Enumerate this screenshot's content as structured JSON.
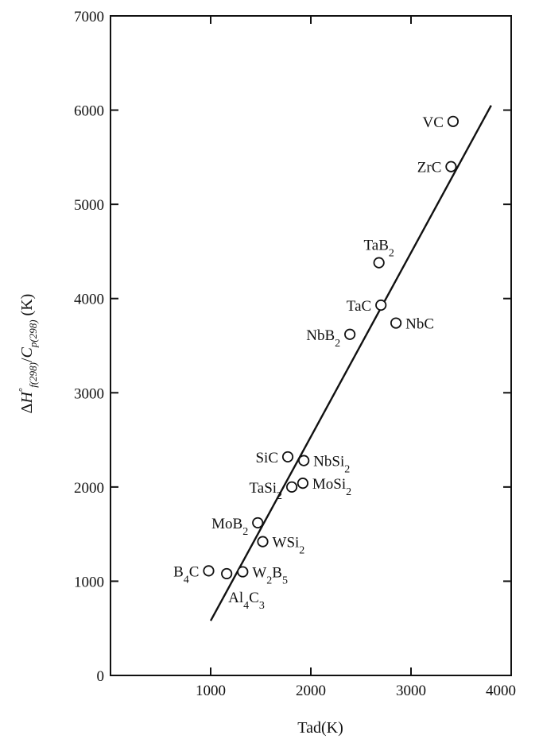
{
  "chart_data": {
    "type": "scatter",
    "xlabel": "Tad(K)",
    "ylabel": "ΔH°f(298)/Cp(298) (K)",
    "ylabel_parts": {
      "prefix": "Δ",
      "h": "H",
      "deg": "°",
      "f_sub": "f(298)",
      "slash": "/",
      "c": "C",
      "p_sub": "p(298)",
      "unit": " (K)"
    },
    "xlim": [
      0,
      4000
    ],
    "ylim": [
      0,
      7000
    ],
    "x_ticks": [
      1000,
      2000,
      3000,
      4000
    ],
    "x_tick_labels": [
      "1000",
      "2000",
      "3000",
      "4000"
    ],
    "y_ticks": [
      0,
      1000,
      2000,
      3000,
      4000,
      5000,
      6000,
      7000
    ],
    "y_tick_labels": [
      "0",
      "1000",
      "2000",
      "3000",
      "4000",
      "5000",
      "6000",
      "7000"
    ],
    "grid": false,
    "points": [
      {
        "label": "VC",
        "parts": [
          {
            "t": "VC"
          }
        ],
        "x": 3420,
        "y": 5880,
        "anchor": "end",
        "side": "left"
      },
      {
        "label": "ZrC",
        "parts": [
          {
            "t": "ZrC"
          }
        ],
        "x": 3400,
        "y": 5400,
        "anchor": "end",
        "side": "left"
      },
      {
        "label": "TaB2",
        "parts": [
          {
            "t": "TaB"
          },
          {
            "t": "2",
            "sub": true
          }
        ],
        "x": 2680,
        "y": 4380,
        "anchor": "middle",
        "side": "above"
      },
      {
        "label": "TaC",
        "parts": [
          {
            "t": "TaC"
          }
        ],
        "x": 2700,
        "y": 3930,
        "anchor": "end",
        "side": "left"
      },
      {
        "label": "NbC",
        "parts": [
          {
            "t": "NbC"
          }
        ],
        "x": 2850,
        "y": 3740,
        "anchor": "start",
        "side": "right"
      },
      {
        "label": "NbB2",
        "parts": [
          {
            "t": "NbB"
          },
          {
            "t": "2",
            "sub": true
          }
        ],
        "x": 2390,
        "y": 3620,
        "anchor": "end",
        "side": "left"
      },
      {
        "label": "SiC",
        "parts": [
          {
            "t": "SiC"
          }
        ],
        "x": 1770,
        "y": 2320,
        "anchor": "end",
        "side": "left"
      },
      {
        "label": "NbSi2",
        "parts": [
          {
            "t": "NbSi"
          },
          {
            "t": "2",
            "sub": true
          }
        ],
        "x": 1930,
        "y": 2280,
        "anchor": "start",
        "side": "right"
      },
      {
        "label": "TaSi2",
        "parts": [
          {
            "t": "TaSi"
          },
          {
            "t": "2",
            "sub": true
          }
        ],
        "x": 1810,
        "y": 2000,
        "anchor": "end",
        "side": "left"
      },
      {
        "label": "MoSi2",
        "parts": [
          {
            "t": "MoSi"
          },
          {
            "t": "2",
            "sub": true
          }
        ],
        "x": 1920,
        "y": 2040,
        "anchor": "start",
        "side": "right"
      },
      {
        "label": "MoB2",
        "parts": [
          {
            "t": "MoB"
          },
          {
            "t": "2",
            "sub": true
          }
        ],
        "x": 1470,
        "y": 1620,
        "anchor": "end",
        "side": "left"
      },
      {
        "label": "WSi2",
        "parts": [
          {
            "t": "WSi"
          },
          {
            "t": "2",
            "sub": true
          }
        ],
        "x": 1520,
        "y": 1420,
        "anchor": "start",
        "side": "right"
      },
      {
        "label": "B4C",
        "parts": [
          {
            "t": "B"
          },
          {
            "t": "4",
            "sub": true
          },
          {
            "t": "C"
          }
        ],
        "x": 980,
        "y": 1110,
        "anchor": "end",
        "side": "left"
      },
      {
        "label": "W2B5",
        "parts": [
          {
            "t": "W"
          },
          {
            "t": "2",
            "sub": true
          },
          {
            "t": "B"
          },
          {
            "t": "5",
            "sub": true
          }
        ],
        "x": 1320,
        "y": 1100,
        "anchor": "start",
        "side": "right"
      },
      {
        "label": "Al4C3",
        "parts": [
          {
            "t": "Al"
          },
          {
            "t": "4",
            "sub": true
          },
          {
            "t": "C"
          },
          {
            "t": "3",
            "sub": true
          }
        ],
        "x": 1160,
        "y": 1080,
        "anchor": "start",
        "side": "below"
      }
    ],
    "fit_line": {
      "x": [
        1000,
        3800
      ],
      "y": [
        580,
        6050
      ]
    }
  }
}
